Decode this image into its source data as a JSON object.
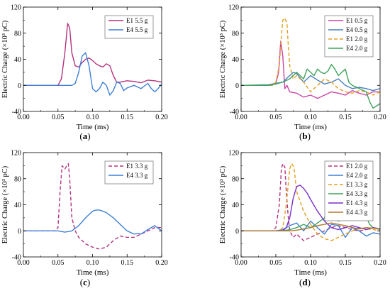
{
  "chart_data": [
    {
      "id": "a",
      "panel_label": "(a)",
      "type": "line",
      "xlabel": "Time (ms)",
      "ylabel": "Electric Charge (×10³ pC)",
      "xlim": [
        0,
        0.2
      ],
      "ylim": [
        -40,
        120
      ],
      "xticks": [
        "0.00",
        "0.05",
        "0.10",
        "0.15",
        "0.20"
      ],
      "yticks": [
        "-40",
        "0",
        "40",
        "80",
        "120"
      ],
      "grid": false,
      "legend": "top-right",
      "series": [
        {
          "name": "E1 5.5 g",
          "color": "#b3337f",
          "dash": "solid",
          "x": [
            0,
            0.04,
            0.05,
            0.055,
            0.06,
            0.064,
            0.067,
            0.07,
            0.075,
            0.08,
            0.085,
            0.09,
            0.095,
            0.1,
            0.105,
            0.11,
            0.115,
            0.12,
            0.125,
            0.13,
            0.135,
            0.14,
            0.15,
            0.16,
            0.17,
            0.18,
            0.19,
            0.2
          ],
          "y": [
            0,
            0,
            0,
            10,
            50,
            95,
            88,
            50,
            30,
            28,
            35,
            40,
            42,
            38,
            33,
            30,
            28,
            33,
            30,
            15,
            5,
            5,
            7,
            6,
            4,
            8,
            7,
            5
          ]
        },
        {
          "name": "E4 5.5 g",
          "color": "#3d7fd6",
          "dash": "solid",
          "x": [
            0,
            0.07,
            0.075,
            0.08,
            0.085,
            0.09,
            0.095,
            0.1,
            0.105,
            0.11,
            0.115,
            0.12,
            0.125,
            0.13,
            0.135,
            0.14,
            0.145,
            0.15,
            0.16,
            0.17,
            0.18,
            0.185,
            0.19,
            0.195,
            0.2
          ],
          "y": [
            0,
            0,
            3,
            20,
            45,
            50,
            30,
            -5,
            -10,
            -5,
            5,
            0,
            -15,
            -8,
            5,
            3,
            -8,
            -4,
            0,
            -5,
            3,
            -5,
            -10,
            -5,
            2
          ]
        }
      ]
    },
    {
      "id": "b",
      "panel_label": "(b)",
      "type": "line",
      "xlabel": "Time (ms)",
      "ylabel": "Electric Charge (×10³ pC)",
      "xlim": [
        0,
        0.2
      ],
      "ylim": [
        -40,
        120
      ],
      "xticks": [
        "0.00",
        "0.05",
        "0.10",
        "0.15",
        "0.20"
      ],
      "yticks": [
        "-40",
        "0",
        "40",
        "80",
        "120"
      ],
      "grid": false,
      "legend": "top-right",
      "series": [
        {
          "name": "E1 0.5 g",
          "color": "#c944a6",
          "dash": "solid",
          "x": [
            0,
            0.04,
            0.05,
            0.054,
            0.057,
            0.06,
            0.063,
            0.066,
            0.07,
            0.08,
            0.09,
            0.1,
            0.11,
            0.12,
            0.13,
            0.14,
            0.15,
            0.16,
            0.17,
            0.18,
            0.19,
            0.2
          ],
          "y": [
            0,
            0,
            3,
            20,
            68,
            45,
            -5,
            0,
            -10,
            -12,
            -18,
            -15,
            -20,
            -15,
            -10,
            -12,
            -15,
            -8,
            -12,
            -15,
            -10,
            -10
          ]
        },
        {
          "name": "E4 0.5 g",
          "color": "#4a7ec0",
          "dash": "solid",
          "x": [
            0,
            0.04,
            0.05,
            0.06,
            0.07,
            0.075,
            0.08,
            0.09,
            0.1,
            0.11,
            0.12,
            0.13,
            0.14,
            0.15,
            0.16,
            0.17,
            0.18,
            0.19,
            0.2
          ],
          "y": [
            0,
            1,
            3,
            5,
            15,
            20,
            18,
            5,
            15,
            8,
            2,
            5,
            10,
            0,
            -5,
            -3,
            -5,
            -8,
            -5
          ]
        },
        {
          "name": "E1 2.0 g",
          "color": "#e0a020",
          "dash": "dashed",
          "x": [
            0,
            0.045,
            0.05,
            0.055,
            0.058,
            0.06,
            0.063,
            0.066,
            0.068,
            0.07,
            0.075,
            0.08,
            0.09,
            0.1,
            0.11,
            0.12,
            0.13,
            0.14,
            0.15,
            0.16,
            0.17,
            0.18,
            0.19,
            0.2
          ],
          "y": [
            0,
            0,
            5,
            30,
            75,
            100,
            103,
            95,
            60,
            30,
            10,
            15,
            5,
            -10,
            0,
            10,
            5,
            -5,
            -10,
            -12,
            -8,
            -10,
            -15,
            -10
          ]
        },
        {
          "name": "E4 2.0 g",
          "color": "#3fa35b",
          "dash": "solid",
          "x": [
            0,
            0.04,
            0.05,
            0.06,
            0.07,
            0.08,
            0.085,
            0.09,
            0.095,
            0.1,
            0.105,
            0.11,
            0.115,
            0.12,
            0.125,
            0.13,
            0.135,
            0.14,
            0.145,
            0.15,
            0.155,
            0.16,
            0.17,
            0.18,
            0.185,
            0.19,
            0.2
          ],
          "y": [
            0,
            0,
            2,
            5,
            10,
            20,
            15,
            10,
            25,
            20,
            15,
            25,
            20,
            18,
            22,
            32,
            25,
            15,
            20,
            25,
            5,
            0,
            -5,
            -10,
            -25,
            -35,
            -28
          ]
        }
      ]
    },
    {
      "id": "c",
      "panel_label": "(c)",
      "type": "line",
      "xlabel": "Time (ms)",
      "ylabel": "Electric Charge (×10³ pC)",
      "xlim": [
        0,
        0.2
      ],
      "ylim": [
        -40,
        120
      ],
      "xticks": [
        "0.00",
        "0.05",
        "0.10",
        "0.15",
        "0.20"
      ],
      "yticks": [
        "-40",
        "0",
        "40",
        "80",
        "120"
      ],
      "grid": false,
      "legend": "top-right",
      "series": [
        {
          "name": "E1 3.3 g",
          "color": "#b3337f",
          "dash": "dashed",
          "x": [
            0,
            0.045,
            0.05,
            0.053,
            0.056,
            0.06,
            0.063,
            0.065,
            0.067,
            0.07,
            0.075,
            0.08,
            0.09,
            0.1,
            0.11,
            0.12,
            0.13,
            0.14,
            0.15,
            0.16,
            0.17,
            0.18,
            0.19,
            0.2
          ],
          "y": [
            0,
            0,
            5,
            60,
            100,
            95,
            100,
            103,
            80,
            20,
            0,
            -10,
            -20,
            -25,
            -28,
            -25,
            -15,
            -8,
            -10,
            -10,
            -5,
            0,
            5,
            5
          ]
        },
        {
          "name": "E4 3.3 g",
          "color": "#3d7fd6",
          "dash": "solid",
          "x": [
            0,
            0.05,
            0.06,
            0.07,
            0.08,
            0.09,
            0.1,
            0.105,
            0.11,
            0.115,
            0.12,
            0.13,
            0.14,
            0.15,
            0.16,
            0.165,
            0.17,
            0.18,
            0.19,
            0.2
          ],
          "y": [
            0,
            0,
            -2,
            0,
            8,
            20,
            30,
            32,
            32,
            30,
            28,
            20,
            10,
            0,
            -5,
            -4,
            -5,
            2,
            8,
            0
          ]
        }
      ]
    },
    {
      "id": "d",
      "panel_label": "(d)",
      "type": "line",
      "xlabel": "Time (ms)",
      "ylabel": "Electric Charge (×10³ pC)",
      "xlim": [
        0,
        0.2
      ],
      "ylim": [
        -40,
        120
      ],
      "xticks": [
        "0.00",
        "0.05",
        "0.10",
        "0.15",
        "0.20"
      ],
      "yticks": [
        "-40",
        "0",
        "40",
        "80",
        "120"
      ],
      "grid": false,
      "legend": "top-right",
      "series": [
        {
          "name": "E1 2.0 g",
          "color": "#b3337f",
          "dash": "dashed",
          "x": [
            0,
            0.045,
            0.05,
            0.055,
            0.058,
            0.06,
            0.063,
            0.065,
            0.068,
            0.07,
            0.075,
            0.08,
            0.09,
            0.1,
            0.11,
            0.12,
            0.13,
            0.14,
            0.15,
            0.16,
            0.17,
            0.18,
            0.19,
            0.2
          ],
          "y": [
            0,
            0,
            5,
            40,
            95,
            103,
            98,
            60,
            20,
            0,
            -10,
            -5,
            -15,
            -10,
            -5,
            0,
            5,
            8,
            5,
            2,
            0,
            2,
            5,
            3
          ]
        },
        {
          "name": "E4 2.0 g",
          "color": "#3d7fd6",
          "dash": "solid",
          "x": [
            0,
            0.05,
            0.06,
            0.07,
            0.08,
            0.09,
            0.1,
            0.11,
            0.12,
            0.13,
            0.14,
            0.15,
            0.16,
            0.17,
            0.18,
            0.19,
            0.2
          ],
          "y": [
            0,
            0,
            2,
            8,
            12,
            0,
            15,
            5,
            -5,
            10,
            8,
            -10,
            5,
            0,
            -8,
            -3,
            -5
          ]
        },
        {
          "name": "E1 3.3 g",
          "color": "#e0a020",
          "dash": "dashed",
          "x": [
            0,
            0.055,
            0.06,
            0.065,
            0.07,
            0.073,
            0.076,
            0.08,
            0.085,
            0.09,
            0.1,
            0.11,
            0.12,
            0.13,
            0.14,
            0.15,
            0.16,
            0.17,
            0.18,
            0.19,
            0.2
          ],
          "y": [
            0,
            0,
            5,
            40,
            95,
            103,
            98,
            60,
            45,
            30,
            10,
            -5,
            -12,
            -15,
            -10,
            -5,
            0,
            5,
            3,
            2,
            0
          ]
        },
        {
          "name": "E4 3.3 g",
          "color": "#3fa35b",
          "dash": "solid",
          "x": [
            0,
            0.06,
            0.07,
            0.08,
            0.09,
            0.1,
            0.11,
            0.12,
            0.125,
            0.13,
            0.14,
            0.15,
            0.16,
            0.17,
            0.18,
            0.185,
            0.19,
            0.2
          ],
          "y": [
            0,
            0,
            2,
            5,
            10,
            5,
            12,
            20,
            28,
            25,
            15,
            20,
            22,
            25,
            22,
            10,
            5,
            2
          ]
        },
        {
          "name": "E1 4.3 g",
          "color": "#7a2fc8",
          "dash": "solid",
          "x": [
            0,
            0.06,
            0.065,
            0.07,
            0.075,
            0.08,
            0.085,
            0.09,
            0.095,
            0.1,
            0.11,
            0.12,
            0.13,
            0.14,
            0.15,
            0.16,
            0.17,
            0.18,
            0.19,
            0.2
          ],
          "y": [
            0,
            0,
            5,
            20,
            50,
            68,
            70,
            65,
            58,
            48,
            30,
            15,
            5,
            2,
            5,
            8,
            5,
            2,
            5,
            3
          ]
        },
        {
          "name": "E4 4.3 g",
          "color": "#b07a2a",
          "dash": "solid",
          "x": [
            0,
            0.07,
            0.08,
            0.09,
            0.1,
            0.11,
            0.12,
            0.13,
            0.14,
            0.15,
            0.16,
            0.17,
            0.18,
            0.19,
            0.2
          ],
          "y": [
            0,
            0,
            1,
            3,
            5,
            8,
            10,
            12,
            10,
            8,
            5,
            3,
            5,
            4,
            3
          ]
        }
      ]
    }
  ]
}
